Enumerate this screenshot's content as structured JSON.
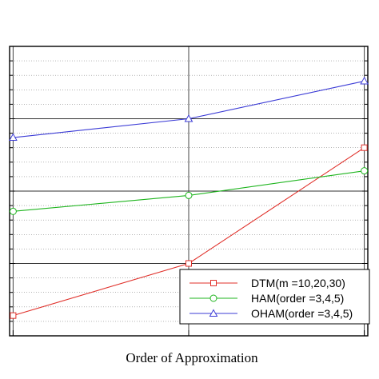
{
  "chart_data": {
    "type": "line",
    "xlabel": "Order of Approximation",
    "ylabel": "",
    "x": [
      1,
      2,
      3
    ],
    "xlim": [
      0.98,
      3.02
    ],
    "ylim": [
      0,
      10
    ],
    "grid": true,
    "legend_position": "bottom-right",
    "series": [
      {
        "name": "DTM(m =10,20,30)",
        "marker": "square",
        "color": "#e0302a",
        "values": [
          0.7,
          2.5,
          6.5
        ]
      },
      {
        "name": "HAM(order =3,4,5)",
        "marker": "circle",
        "color": "#1fb51f",
        "values": [
          4.3,
          4.85,
          5.7
        ]
      },
      {
        "name": "OHAM(order =3,4,5)",
        "marker": "triangle",
        "color": "#3b3bd6",
        "values": [
          6.85,
          7.5,
          8.8
        ]
      }
    ]
  }
}
